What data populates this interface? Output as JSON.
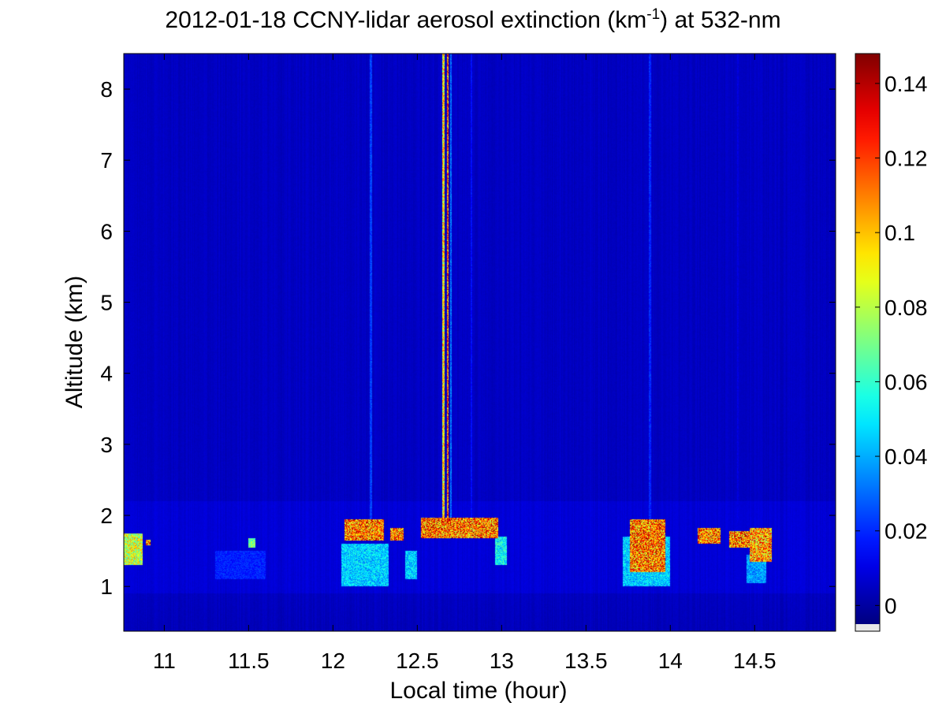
{
  "chart_data": {
    "type": "heatmap",
    "title_prefix": "2012-01-18 CCNY-lidar aerosol extinction (km",
    "title_sup": "-1",
    "title_suffix": ") at 532-nm",
    "xlabel": "Local time (hour)",
    "ylabel": "Altitude (km)",
    "xlim": [
      10.76,
      14.98
    ],
    "ylim": [
      0.37,
      8.5
    ],
    "x_ticks": [
      "11",
      "11.5",
      "12",
      "12.5",
      "13",
      "13.5",
      "14",
      "14.5"
    ],
    "y_ticks": [
      "1",
      "2",
      "3",
      "4",
      "5",
      "6",
      "7",
      "8"
    ],
    "colorbar": {
      "range": [
        -0.005,
        0.148
      ],
      "ticks": [
        "0",
        "0.02",
        "0.04",
        "0.06",
        "0.08",
        "0.1",
        "0.12",
        "0.14"
      ],
      "colormap": "jet",
      "colormap_stops": [
        "#00008f",
        "#0000ff",
        "#00ffff",
        "#ffff00",
        "#ff0000",
        "#800000"
      ]
    },
    "background_value": 0.005,
    "features": [
      {
        "kind": "column",
        "x": 12.655,
        "y_from": 1.85,
        "y_to": 8.5,
        "value": 0.12
      },
      {
        "kind": "column",
        "x": 12.68,
        "y_from": 1.9,
        "y_to": 8.5,
        "value": 0.148
      },
      {
        "kind": "column",
        "x": 12.7,
        "y_from": 1.9,
        "y_to": 8.5,
        "value": 0.04
      },
      {
        "kind": "column",
        "x": 12.225,
        "y_from": 1.9,
        "y_to": 8.5,
        "value": 0.03
      },
      {
        "kind": "column",
        "x": 12.82,
        "y_from": 1.9,
        "y_to": 8.5,
        "value": 0.02
      },
      {
        "kind": "column",
        "x": 13.88,
        "y_from": 1.9,
        "y_to": 8.5,
        "value": 0.025
      },
      {
        "kind": "column",
        "x": 14.4,
        "y_from": 1.9,
        "y_to": 8.5,
        "value": 0.012
      },
      {
        "kind": "patch",
        "x": [
          10.76,
          10.87
        ],
        "y": [
          1.3,
          1.75
        ],
        "value": 0.11
      },
      {
        "kind": "patch",
        "x": [
          10.89,
          10.92
        ],
        "y": [
          1.58,
          1.66
        ],
        "value": 0.148
      },
      {
        "kind": "patch",
        "x": [
          11.5,
          11.54
        ],
        "y": [
          1.55,
          1.68
        ],
        "value": 0.09
      },
      {
        "kind": "patch",
        "x": [
          12.07,
          12.3
        ],
        "y": [
          1.65,
          1.95
        ],
        "value": 0.148
      },
      {
        "kind": "patch",
        "x": [
          12.05,
          12.33
        ],
        "y": [
          1.0,
          1.6
        ],
        "value": 0.06
      },
      {
        "kind": "patch",
        "x": [
          12.34,
          12.42
        ],
        "y": [
          1.65,
          1.82
        ],
        "value": 0.148
      },
      {
        "kind": "patch",
        "x": [
          12.43,
          12.5
        ],
        "y": [
          1.1,
          1.5
        ],
        "value": 0.06
      },
      {
        "kind": "patch",
        "x": [
          12.52,
          12.98
        ],
        "y": [
          1.68,
          1.97
        ],
        "value": 0.148
      },
      {
        "kind": "patch",
        "x": [
          12.96,
          13.03
        ],
        "y": [
          1.3,
          1.7
        ],
        "value": 0.07
      },
      {
        "kind": "patch",
        "x": [
          13.76,
          13.97
        ],
        "y": [
          1.2,
          1.95
        ],
        "value": 0.148
      },
      {
        "kind": "patch",
        "x": [
          13.72,
          14.0
        ],
        "y": [
          1.0,
          1.7
        ],
        "value": 0.06
      },
      {
        "kind": "patch",
        "x": [
          14.16,
          14.3
        ],
        "y": [
          1.6,
          1.82
        ],
        "value": 0.148
      },
      {
        "kind": "patch",
        "x": [
          14.35,
          14.47
        ],
        "y": [
          1.55,
          1.78
        ],
        "value": 0.148
      },
      {
        "kind": "patch",
        "x": [
          14.47,
          14.6
        ],
        "y": [
          1.35,
          1.82
        ],
        "value": 0.14
      },
      {
        "kind": "patch",
        "x": [
          14.45,
          14.57
        ],
        "y": [
          1.05,
          1.45
        ],
        "value": 0.05
      },
      {
        "kind": "patch",
        "x": [
          11.3,
          11.6
        ],
        "y": [
          1.1,
          1.5
        ],
        "value": 0.025
      }
    ]
  }
}
